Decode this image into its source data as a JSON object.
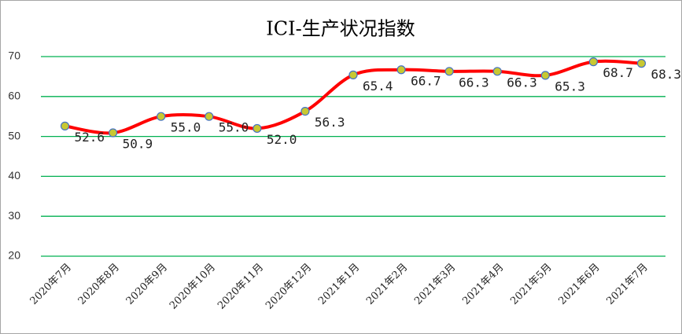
{
  "chart_data": {
    "type": "line",
    "title": "ICI-生产状况指数",
    "categories": [
      "2020年7月",
      "2020年8月",
      "2020年9月",
      "2020年10月",
      "2020年11月",
      "2020年12月",
      "2021年1月",
      "2021年2月",
      "2021年3月",
      "2021年4月",
      "2021年5月",
      "2021年6月",
      "2021年7月"
    ],
    "series": [
      {
        "name": "ICI-生产状况指数",
        "color": "#ff0000",
        "values": [
          52.6,
          50.9,
          55.0,
          55.0,
          52.0,
          56.3,
          65.4,
          66.7,
          66.3,
          66.3,
          65.3,
          68.7,
          68.3
        ],
        "value_labels": [
          "52.6",
          "50.9",
          "55.0",
          "55.0",
          "52.0",
          "56.3",
          "65.4",
          "66.7",
          "66.3",
          "66.3",
          "65.3",
          "68.7",
          "68.3"
        ]
      }
    ],
    "ylim": [
      20,
      70
    ],
    "yticks": [
      20,
      30,
      40,
      50,
      60,
      70
    ],
    "grid": true,
    "grid_color": "#00b050",
    "marker_color": "#c8c832",
    "marker_edge": "#4472c4"
  }
}
